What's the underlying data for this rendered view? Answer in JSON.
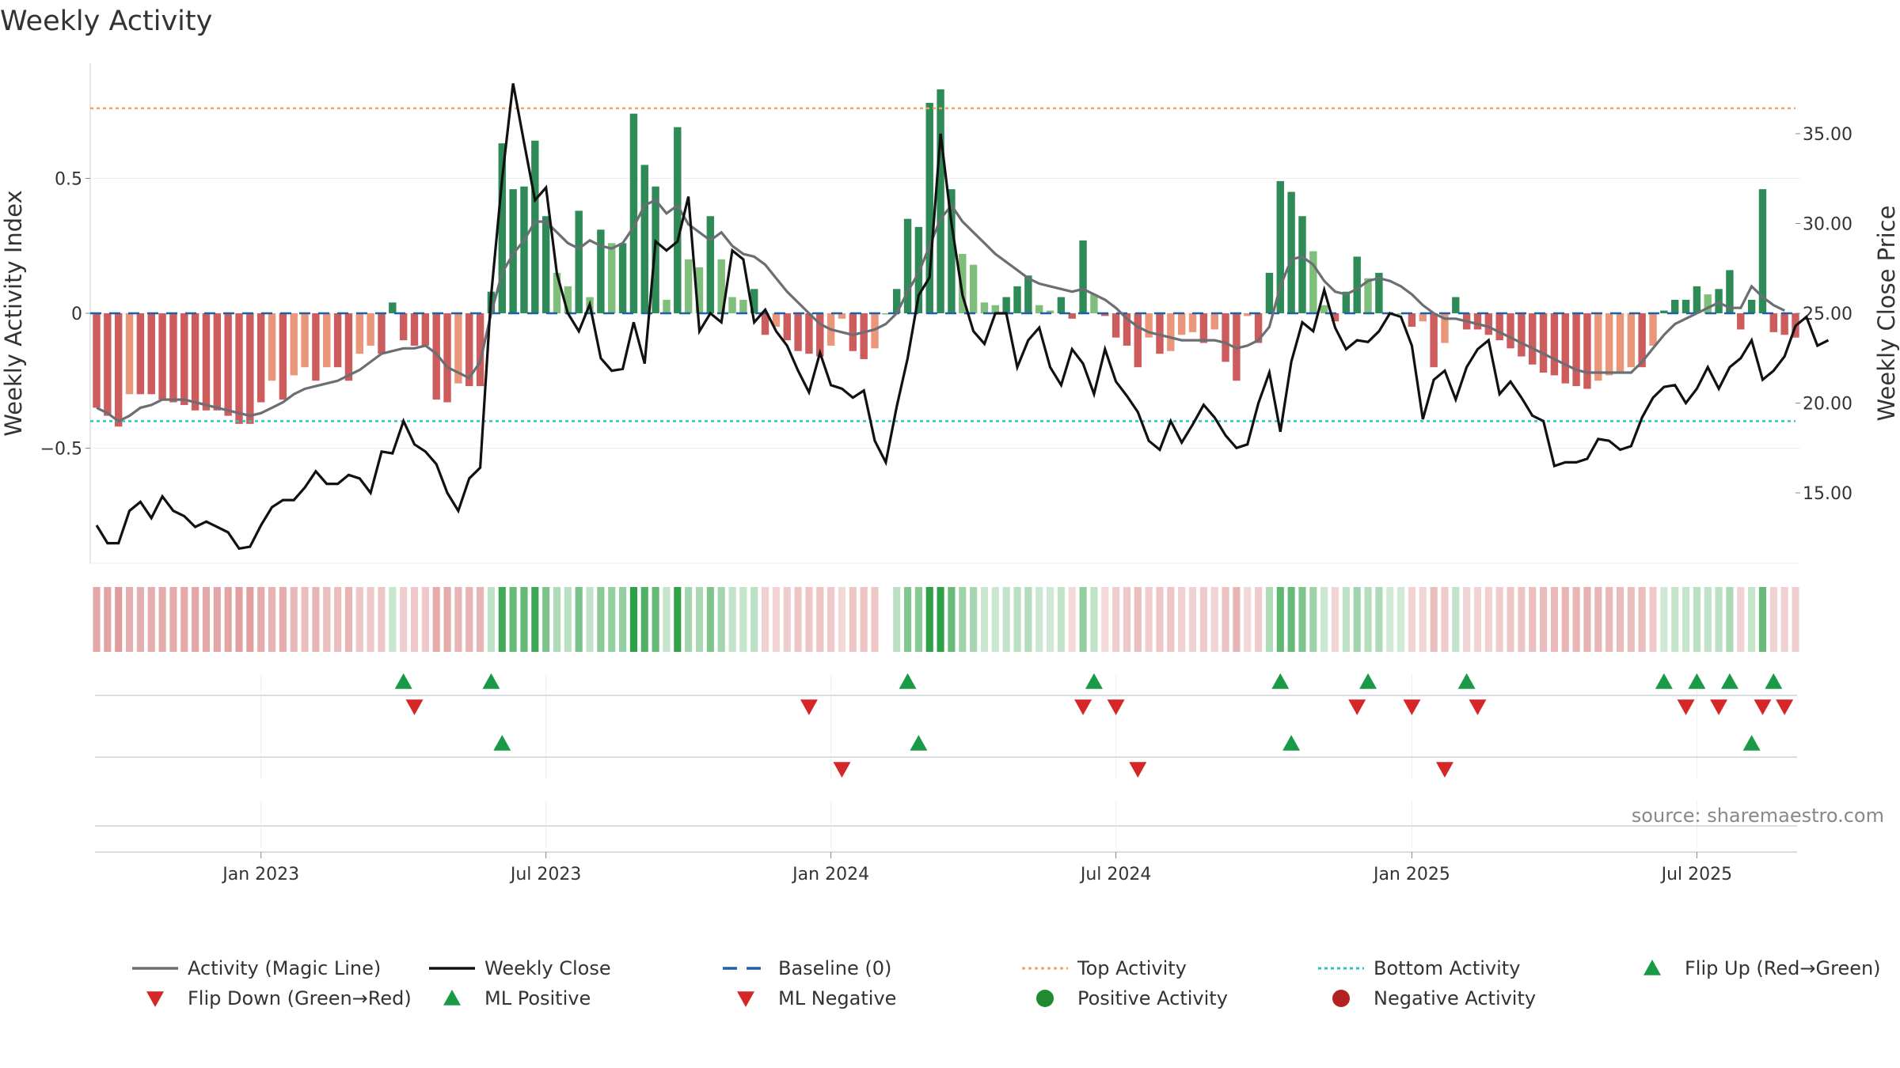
{
  "chart_data": {
    "type": "bar+line",
    "title": "Weekly Activity",
    "ylabel_left": "Weekly Activity Index",
    "ylabel_right": "Weekly Close Price",
    "left_yticks": [
      {
        "v": 0.5,
        "label": "0.5"
      },
      {
        "v": 0,
        "label": "0"
      },
      {
        "v": -0.5,
        "label": "−0.5"
      }
    ],
    "right_yticks": [
      {
        "v": 35,
        "label": "35.00"
      },
      {
        "v": 30,
        "label": "30.00"
      },
      {
        "v": 25,
        "label": "25.00"
      },
      {
        "v": 20,
        "label": "20.00"
      },
      {
        "v": 15,
        "label": "15.00"
      }
    ],
    "ylim_left": [
      -0.93,
      0.93
    ],
    "ylim_right": [
      10.5,
      38.5
    ],
    "top_activity": 0.76,
    "bottom_activity": -0.4,
    "x_ticks": [
      {
        "week": 15,
        "label": "Jan 2023"
      },
      {
        "week": 41,
        "label": "Jul 2023"
      },
      {
        "week": 67,
        "label": "Jan 2024"
      },
      {
        "week": 93,
        "label": "Jul 2024"
      },
      {
        "week": 120,
        "label": "Jan 2025"
      },
      {
        "week": 146,
        "label": "Jul 2025"
      }
    ],
    "activity": [
      -0.35,
      -0.38,
      -0.42,
      -0.3,
      -0.3,
      -0.3,
      -0.32,
      -0.33,
      -0.34,
      -0.36,
      -0.36,
      -0.36,
      -0.38,
      -0.41,
      -0.41,
      -0.33,
      -0.25,
      -0.32,
      -0.23,
      -0.2,
      -0.25,
      -0.2,
      -0.2,
      -0.25,
      -0.15,
      -0.12,
      -0.15,
      0.04,
      -0.1,
      -0.12,
      -0.12,
      -0.32,
      -0.33,
      -0.26,
      -0.27,
      -0.27,
      0.08,
      0.63,
      0.46,
      0.47,
      0.64,
      0.36,
      0.15,
      0.1,
      0.38,
      0.06,
      0.31,
      0.26,
      0.26,
      0.74,
      0.55,
      0.47,
      0.05,
      0.69,
      0.2,
      0.17,
      0.36,
      0.2,
      0.06,
      0.05,
      0.09,
      -0.08,
      -0.05,
      -0.1,
      -0.14,
      -0.15,
      -0.16,
      -0.12,
      -0.02,
      -0.14,
      -0.17,
      -0.13,
      0.0,
      0.09,
      0.35,
      0.32,
      0.78,
      0.83,
      0.46,
      0.22,
      0.18,
      0.04,
      0.03,
      0.06,
      0.1,
      0.14,
      0.03,
      0.01,
      0.06,
      -0.02,
      0.27,
      0.07,
      -0.01,
      -0.09,
      -0.12,
      -0.2,
      -0.09,
      -0.15,
      -0.14,
      -0.08,
      -0.07,
      -0.11,
      -0.06,
      -0.18,
      -0.25,
      -0.01,
      -0.11,
      0.15,
      0.49,
      0.45,
      0.36,
      0.23,
      0.03,
      -0.03,
      0.08,
      0.21,
      0.13,
      0.15,
      0.0,
      0.0,
      -0.05,
      -0.03,
      -0.2,
      -0.11,
      0.06,
      -0.06,
      -0.06,
      -0.08,
      -0.1,
      -0.13,
      -0.16,
      -0.19,
      -0.22,
      -0.23,
      -0.26,
      -0.27,
      -0.28,
      -0.25,
      -0.23,
      -0.22,
      -0.2,
      -0.2,
      -0.12,
      0.01,
      0.05,
      0.05,
      0.1,
      0.07,
      0.09,
      0.16,
      -0.06,
      0.05,
      0.46,
      -0.07,
      -0.08,
      -0.09
    ],
    "close": [
      13.2,
      12.2,
      12.2,
      14.0,
      14.5,
      13.6,
      14.8,
      14.0,
      13.7,
      13.1,
      13.4,
      13.1,
      12.8,
      11.9,
      12.0,
      13.2,
      14.2,
      14.6,
      14.6,
      15.3,
      16.2,
      15.5,
      15.5,
      16.0,
      15.8,
      15.0,
      17.3,
      17.2,
      19.0,
      17.7,
      17.3,
      16.6,
      15.0,
      14.0,
      15.8,
      16.4,
      26.0,
      32.5,
      37.8,
      34.5,
      31.3,
      32.0,
      27.2,
      25.0,
      24.0,
      25.5,
      22.5,
      21.8,
      21.9,
      24.5,
      22.2,
      29.0,
      28.5,
      29.0,
      31.5,
      24.0,
      25.0,
      24.5,
      28.5,
      28.0,
      24.5,
      25.2,
      24.0,
      23.2,
      21.8,
      20.6,
      22.8,
      21.0,
      20.8,
      20.3,
      20.7,
      17.9,
      16.7,
      19.8,
      22.5,
      26.0,
      27.0,
      35.0,
      30.0,
      26.0,
      24.0,
      23.3,
      25.0,
      25.0,
      22.0,
      23.5,
      24.2,
      22.0,
      21.0,
      23.0,
      22.2,
      20.5,
      23.0,
      21.2,
      20.4,
      19.5,
      17.9,
      17.4,
      19.0,
      17.8,
      18.8,
      19.9,
      19.2,
      18.2,
      17.5,
      17.7,
      20.0,
      21.7,
      18.4,
      22.3,
      24.5,
      24.0,
      26.3,
      24.2,
      23.0,
      23.5,
      23.4,
      24.0,
      25.0,
      24.8,
      23.2,
      19.1,
      21.3,
      21.8,
      20.2,
      22.0,
      23.0,
      23.5,
      20.5,
      21.2,
      20.3,
      19.3,
      19.0,
      16.5,
      16.7,
      16.7,
      16.9,
      18.0,
      17.9,
      17.4,
      17.6,
      19.2,
      20.3,
      20.9,
      21.0,
      20.0,
      20.8,
      22.0,
      20.8,
      22.0,
      22.5,
      23.5,
      21.3,
      21.8,
      22.6,
      24.3,
      24.8,
      23.2,
      23.5
    ],
    "magic_line": [
      -0.35,
      -0.37,
      -0.4,
      -0.38,
      -0.35,
      -0.34,
      -0.32,
      -0.32,
      -0.32,
      -0.33,
      -0.34,
      -0.35,
      -0.36,
      -0.37,
      -0.38,
      -0.37,
      -0.35,
      -0.33,
      -0.3,
      -0.28,
      -0.27,
      -0.26,
      -0.25,
      -0.23,
      -0.21,
      -0.18,
      -0.15,
      -0.14,
      -0.13,
      -0.13,
      -0.12,
      -0.15,
      -0.2,
      -0.22,
      -0.24,
      -0.18,
      0.0,
      0.15,
      0.22,
      0.27,
      0.34,
      0.34,
      0.3,
      0.26,
      0.24,
      0.27,
      0.25,
      0.24,
      0.26,
      0.32,
      0.4,
      0.42,
      0.37,
      0.4,
      0.33,
      0.3,
      0.27,
      0.3,
      0.25,
      0.22,
      0.21,
      0.18,
      0.13,
      0.08,
      0.04,
      0.0,
      -0.04,
      -0.06,
      -0.07,
      -0.08,
      -0.07,
      -0.06,
      -0.04,
      0.0,
      0.08,
      0.15,
      0.25,
      0.35,
      0.4,
      0.34,
      0.3,
      0.26,
      0.22,
      0.19,
      0.16,
      0.13,
      0.11,
      0.1,
      0.09,
      0.08,
      0.09,
      0.07,
      0.05,
      0.02,
      -0.02,
      -0.05,
      -0.07,
      -0.08,
      -0.09,
      -0.1,
      -0.1,
      -0.1,
      -0.1,
      -0.11,
      -0.13,
      -0.12,
      -0.1,
      -0.05,
      0.1,
      0.2,
      0.21,
      0.18,
      0.12,
      0.08,
      0.07,
      0.09,
      0.12,
      0.13,
      0.12,
      0.1,
      0.07,
      0.03,
      0.0,
      -0.02,
      -0.02,
      -0.03,
      -0.04,
      -0.05,
      -0.07,
      -0.09,
      -0.11,
      -0.13,
      -0.15,
      -0.17,
      -0.19,
      -0.21,
      -0.22,
      -0.22,
      -0.22,
      -0.22,
      -0.22,
      -0.18,
      -0.13,
      -0.08,
      -0.04,
      -0.02,
      0.0,
      0.02,
      0.04,
      0.02,
      0.02,
      0.1,
      0.06,
      0.03,
      0.01
    ],
    "strip_gap_week": 72,
    "flip_up_weeks": [
      28,
      36,
      74,
      91,
      108,
      116,
      125,
      143,
      146,
      149,
      153
    ],
    "flip_down_weeks": [
      29,
      65,
      90,
      93,
      115,
      120,
      126,
      145,
      148,
      152,
      154
    ],
    "ml_positive_weeks": [
      37,
      75,
      109,
      151
    ],
    "ml_negative_weeks": [
      68,
      95,
      123
    ],
    "source": "source: sharemaestro.com",
    "legend": [
      {
        "label": "Activity (Magic Line)",
        "kind": "line",
        "color": "#6b6e73"
      },
      {
        "label": "Weekly Close",
        "kind": "line",
        "color": "#111111"
      },
      {
        "label": "Baseline (0)",
        "kind": "dash",
        "color": "#1f5fa5"
      },
      {
        "label": "Top Activity",
        "kind": "dot",
        "color": "#f0a35e"
      },
      {
        "label": "Bottom Activity",
        "kind": "dot",
        "color": "#2ec4c9"
      },
      {
        "label": "Flip Up (Red→Green)",
        "kind": "tri-up",
        "color": "#1a9a46"
      },
      {
        "label": "Flip Down (Green→Red)",
        "kind": "tri-down",
        "color": "#d62728"
      },
      {
        "label": "ML Positive",
        "kind": "tri-up",
        "color": "#1a9a46"
      },
      {
        "label": "ML Negative",
        "kind": "tri-down",
        "color": "#d62728"
      },
      {
        "label": "Positive Activity",
        "kind": "circle",
        "color": "#1f8a2e"
      },
      {
        "label": "Negative Activity",
        "kind": "circle",
        "color": "#b22222"
      }
    ]
  },
  "colors": {
    "pos_strong": "#2e8b57",
    "pos_light": "#7fbf7b",
    "neg_strong": "#cd5c5c",
    "neg_light": "#e9967a",
    "flip_up": "#1a9a46",
    "flip_down": "#d62728"
  }
}
